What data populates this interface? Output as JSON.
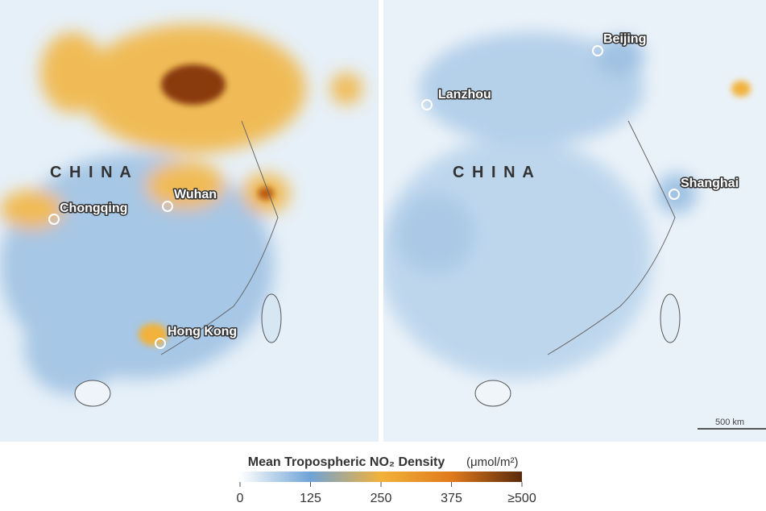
{
  "panels": [
    {
      "country": "C H I N A",
      "cities": [
        "Chongqing",
        "Wuhan",
        "Hong Kong"
      ]
    },
    {
      "country": "C H I N A",
      "cities": [
        "Beijing",
        "Lanzhou",
        "Shanghai"
      ],
      "scale": "500 km"
    }
  ],
  "colorbar": {
    "title": "Mean Tropospheric NO₂ Density",
    "unit": "(μmol/m²)",
    "range": [
      0,
      500
    ],
    "ticks": [
      0,
      125,
      250,
      375,
      {
        "value": 500,
        "label": "≥500"
      }
    ]
  }
}
